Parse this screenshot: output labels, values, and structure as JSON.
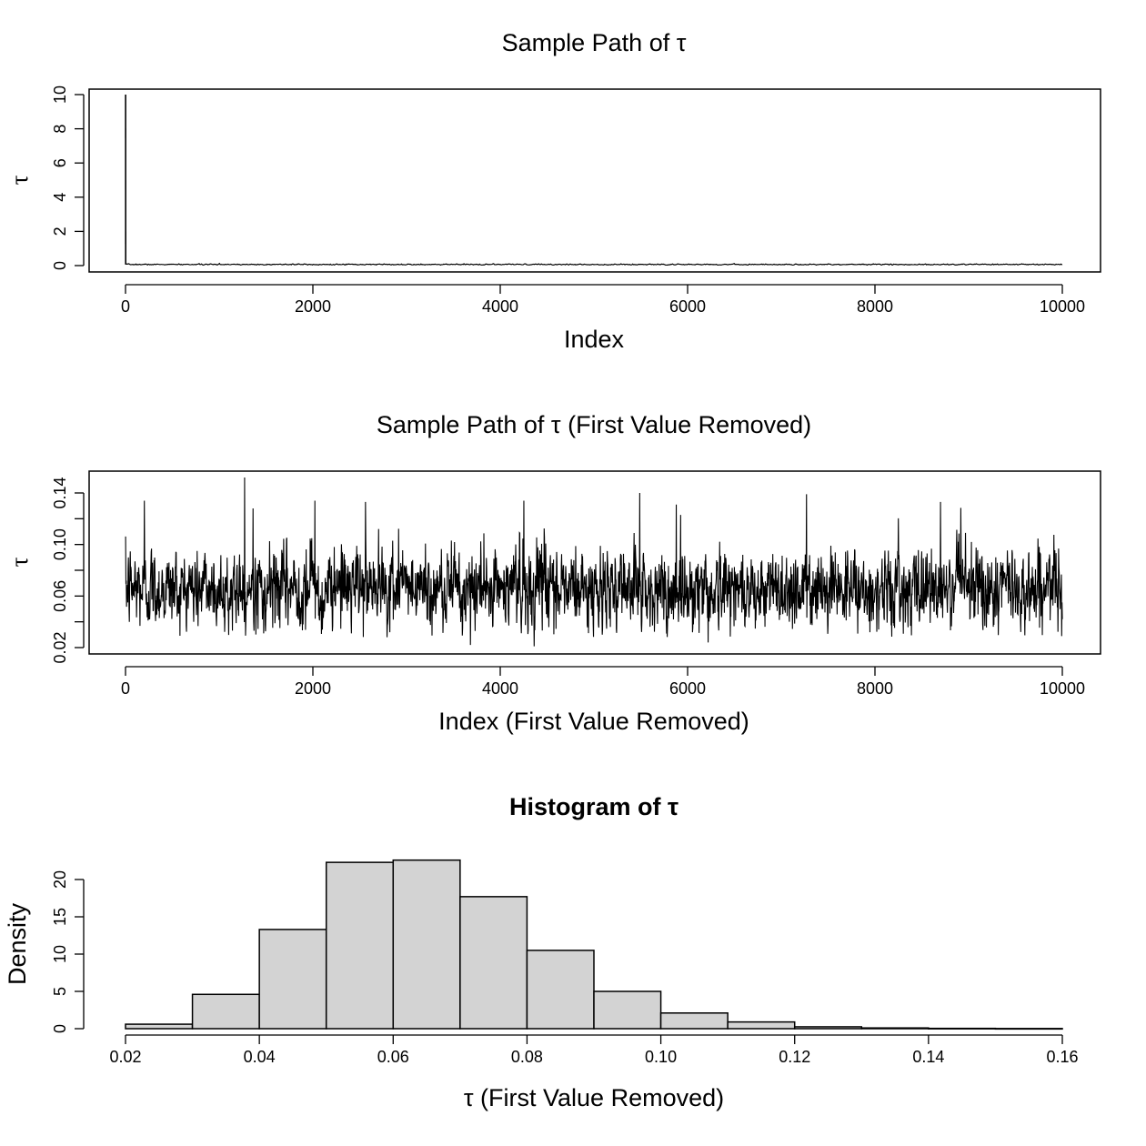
{
  "chart_data": [
    {
      "type": "line",
      "title": "Sample Path of τ",
      "xlabel": "Index",
      "ylabel": "τ",
      "xlim": [
        0,
        10000
      ],
      "ylim": [
        0,
        10
      ],
      "x_ticks": [
        0,
        2000,
        4000,
        6000,
        8000,
        10000
      ],
      "y_ticks": [
        0,
        2,
        4,
        6,
        8,
        10
      ],
      "grid": false,
      "series": [
        {
          "description_values": "MCMC trace; initial value 10 at index 1, then values fluctuating between about 0.02 and 0.15 for indices 2 to 10000",
          "x": [
            1,
            2,
            1000,
            2000,
            3000,
            4000,
            5000,
            6000,
            7000,
            8000,
            9000,
            10000
          ],
          "values": [
            10,
            0.06,
            0.065,
            0.066,
            0.063,
            0.066,
            0.065,
            0.064,
            0.066,
            0.065,
            0.064,
            0.066
          ]
        }
      ]
    },
    {
      "type": "line",
      "title": "Sample Path of τ (First Value Removed)",
      "xlabel": "Index (First Value Removed)",
      "ylabel": "τ",
      "xlim": [
        0,
        10000
      ],
      "ylim": [
        0.02,
        0.15
      ],
      "x_ticks": [
        0,
        2000,
        4000,
        6000,
        8000,
        10000
      ],
      "y_ticks": [
        0.02,
        0.06,
        0.1,
        0.14
      ],
      "y_minor_ticks": [
        0.04,
        0.08,
        0.12
      ],
      "grid": false,
      "trace_summary": {
        "mean": 0.066,
        "min": 0.02,
        "max": 0.15
      },
      "notable_peaks": [
        {
          "x": 200,
          "y": 0.134
        },
        {
          "x": 1270,
          "y": 0.152
        },
        {
          "x": 1360,
          "y": 0.128
        },
        {
          "x": 2020,
          "y": 0.134
        },
        {
          "x": 2560,
          "y": 0.133
        },
        {
          "x": 4250,
          "y": 0.134
        },
        {
          "x": 5490,
          "y": 0.14
        },
        {
          "x": 5880,
          "y": 0.131
        },
        {
          "x": 7270,
          "y": 0.139
        },
        {
          "x": 8700,
          "y": 0.133
        }
      ],
      "notable_troughs": [
        {
          "x": 4360,
          "y": 0.021
        },
        {
          "x": 3680,
          "y": 0.022
        },
        {
          "x": 6220,
          "y": 0.024
        }
      ]
    },
    {
      "type": "bar",
      "title": "Histogram of τ",
      "xlabel": "τ (First Value Removed)",
      "ylabel": "Density",
      "xlim": [
        0.02,
        0.16
      ],
      "ylim": [
        0,
        22
      ],
      "x_ticks": [
        0.02,
        0.04,
        0.06,
        0.08,
        0.1,
        0.12,
        0.14,
        0.16
      ],
      "y_ticks": [
        0,
        5,
        10,
        15,
        20
      ],
      "bar_color": "#d3d3d3",
      "bins": [
        {
          "from": 0.02,
          "to": 0.03,
          "density": 0.6
        },
        {
          "from": 0.03,
          "to": 0.04,
          "density": 4.6
        },
        {
          "from": 0.04,
          "to": 0.05,
          "density": 13.3
        },
        {
          "from": 0.05,
          "to": 0.06,
          "density": 22.3
        },
        {
          "from": 0.06,
          "to": 0.07,
          "density": 22.6
        },
        {
          "from": 0.07,
          "to": 0.08,
          "density": 17.7
        },
        {
          "from": 0.08,
          "to": 0.09,
          "density": 10.5
        },
        {
          "from": 0.09,
          "to": 0.1,
          "density": 5.0
        },
        {
          "from": 0.1,
          "to": 0.11,
          "density": 2.1
        },
        {
          "from": 0.11,
          "to": 0.12,
          "density": 0.9
        },
        {
          "from": 0.12,
          "to": 0.13,
          "density": 0.25
        },
        {
          "from": 0.13,
          "to": 0.14,
          "density": 0.1
        },
        {
          "from": 0.14,
          "to": 0.15,
          "density": 0.04
        },
        {
          "from": 0.15,
          "to": 0.16,
          "density": 0.02
        }
      ]
    }
  ]
}
